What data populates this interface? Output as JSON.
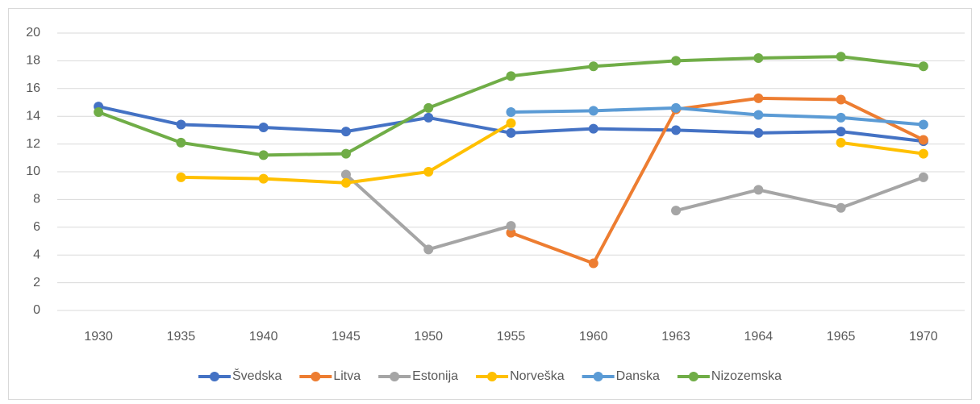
{
  "chart_data": {
    "type": "line",
    "categories": [
      "1930",
      "1935",
      "1940",
      "1945",
      "1950",
      "1955",
      "1960",
      "1963",
      "1964",
      "1965",
      "1970"
    ],
    "series": [
      {
        "name": "Švedska",
        "color": "#4472c4",
        "values": [
          14.7,
          13.4,
          13.2,
          12.9,
          13.9,
          12.8,
          13.1,
          13.0,
          12.8,
          12.9,
          12.2
        ]
      },
      {
        "name": "Litva",
        "color": "#ed7d31",
        "values": [
          null,
          null,
          null,
          null,
          null,
          5.6,
          3.4,
          14.5,
          15.3,
          15.2,
          12.3
        ]
      },
      {
        "name": "Estonija",
        "color": "#a5a5a5",
        "values": [
          null,
          null,
          null,
          9.8,
          4.4,
          6.1,
          null,
          7.2,
          8.7,
          7.4,
          9.6
        ]
      },
      {
        "name": "Norveška",
        "color": "#ffc000",
        "values": [
          null,
          9.6,
          9.5,
          9.2,
          10.0,
          13.5,
          null,
          null,
          null,
          12.1,
          11.3
        ]
      },
      {
        "name": "Danska",
        "color": "#5b9bd5",
        "values": [
          null,
          null,
          null,
          null,
          null,
          14.3,
          14.4,
          14.6,
          14.1,
          13.9,
          13.4
        ]
      },
      {
        "name": "Nizozemska",
        "color": "#70ad47",
        "values": [
          14.3,
          12.1,
          11.2,
          11.3,
          14.6,
          16.9,
          17.6,
          18.0,
          18.2,
          18.3,
          17.6
        ]
      }
    ],
    "ylim": [
      0,
      20
    ],
    "yticks": [
      0,
      2,
      4,
      6,
      8,
      10,
      12,
      14,
      16,
      18,
      20
    ],
    "grid": true,
    "legend": "bottom"
  }
}
